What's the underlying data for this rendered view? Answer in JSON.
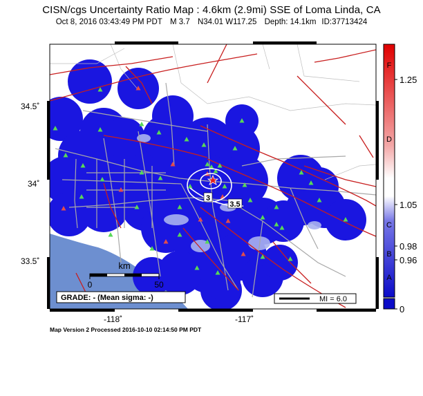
{
  "title": "CISN/cgs Uncertainty Ratio Map : 4.6km (2.9mi) SSE of Loma Linda, CA",
  "event": {
    "date": "Oct  8, 2016 03:43:49 PM PDT",
    "magnitude": "M 3.7",
    "location": "N34.01 W117.25",
    "depth": "Depth: 14.1km",
    "id": "ID:37713424"
  },
  "axes": {
    "lat_ticks": [
      "34.5˚",
      "34˚",
      "33.5˚"
    ],
    "lon_ticks": [
      "-118˚",
      "-117˚"
    ]
  },
  "scale_bar": {
    "unit": "km",
    "start": "0",
    "end": "50"
  },
  "grade_box": "GRADE: - (Mean sigma: -)",
  "mi_legend": "MI = 6.0",
  "colorbar": {
    "grade_letters": [
      "F",
      "D",
      "C",
      "B",
      "A"
    ],
    "value_labels": [
      "1.25",
      "1.05",
      "0.98",
      "0.96",
      "0"
    ]
  },
  "contour_labels": [
    "3",
    "3.5"
  ],
  "footer": "Map Version 2 Processed 2016-10-10 02:14:50 PM PDT",
  "colors": {
    "land": "#ffffff",
    "ocean": "#6d8fd0",
    "uncertainty_blue": "#1a16e0",
    "fault": "#c81e1e",
    "road": "#a8a8a8",
    "station": "#58d858",
    "station_alt": "#e24c4c"
  }
}
